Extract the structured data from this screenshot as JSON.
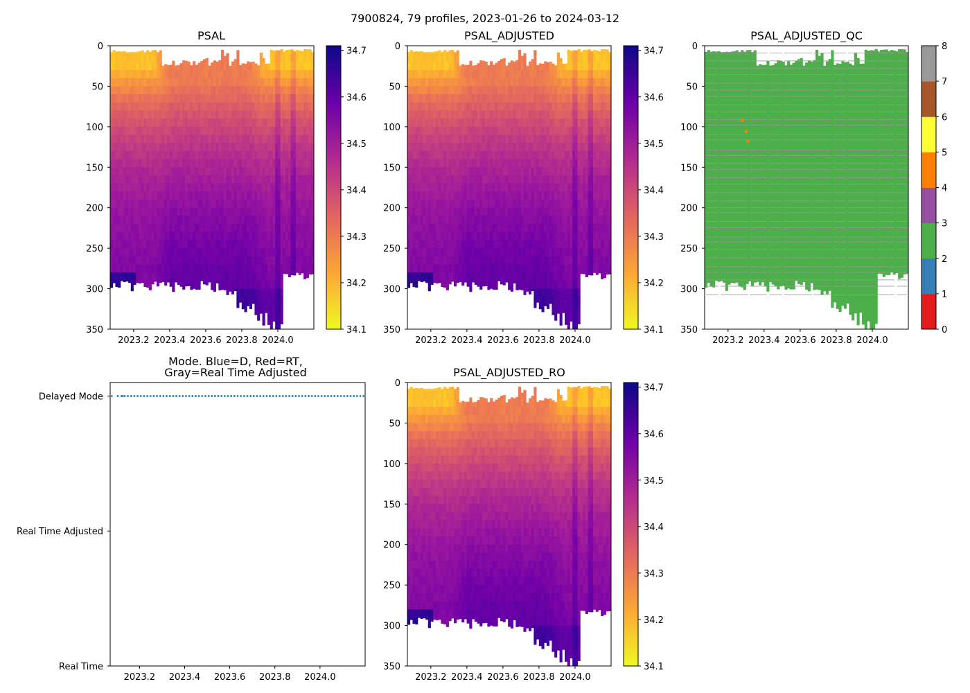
{
  "figure": {
    "suptitle": "7900824, 79 profiles, 2023-01-26 to 2024-03-12"
  },
  "chart_data": [
    {
      "id": "psal",
      "type": "heatmap",
      "title": "PSAL",
      "xticks": [
        "2023.2",
        "2023.4",
        "2023.6",
        "2023.8",
        "2024.0"
      ],
      "xtick_values": [
        2023.2,
        2023.4,
        2023.6,
        2023.8,
        2024.0
      ],
      "xlim": [
        2023.07,
        2024.2
      ],
      "ylim": [
        350,
        0
      ],
      "yticks": [
        "0",
        "50",
        "100",
        "150",
        "200",
        "250",
        "300",
        "350"
      ],
      "colormap": "plasma_r",
      "clim": [
        34.1,
        34.71
      ],
      "colorbar_ticks": [
        "34.1",
        "34.2",
        "34.3",
        "34.4",
        "34.5",
        "34.6",
        "34.7"
      ],
      "colorbar_values": [
        34.1,
        34.2,
        34.3,
        34.4,
        34.5,
        34.6,
        34.7
      ]
    },
    {
      "id": "psal_adjusted",
      "type": "heatmap",
      "title": "PSAL_ADJUSTED",
      "xticks": [
        "2023.2",
        "2023.4",
        "2023.6",
        "2023.8",
        "2024.0"
      ],
      "xtick_values": [
        2023.2,
        2023.4,
        2023.6,
        2023.8,
        2024.0
      ],
      "xlim": [
        2023.07,
        2024.2
      ],
      "ylim": [
        350,
        0
      ],
      "yticks": [
        "0",
        "50",
        "100",
        "150",
        "200",
        "250",
        "300",
        "350"
      ],
      "colormap": "plasma_r",
      "clim": [
        34.1,
        34.71
      ],
      "colorbar_ticks": [
        "34.1",
        "34.2",
        "34.3",
        "34.4",
        "34.5",
        "34.6",
        "34.7"
      ],
      "colorbar_values": [
        34.1,
        34.2,
        34.3,
        34.4,
        34.5,
        34.6,
        34.7
      ]
    },
    {
      "id": "psal_adjusted_qc",
      "type": "heatmap",
      "title": "PSAL_ADJUSTED_QC",
      "xticks": [
        "2023.2",
        "2023.4",
        "2023.6",
        "2023.8",
        "2024.0"
      ],
      "xtick_values": [
        2023.2,
        2023.4,
        2023.6,
        2023.8,
        2024.0
      ],
      "xlim": [
        2023.07,
        2024.2
      ],
      "ylim": [
        350,
        0
      ],
      "yticks": [
        "0",
        "50",
        "100",
        "150",
        "200",
        "250",
        "300",
        "350"
      ],
      "dominant_flag": 2,
      "flag_stripes": 8,
      "flag_points": [
        {
          "x": 2023.28,
          "y": 92,
          "flag": 4
        },
        {
          "x": 2023.3,
          "y": 106,
          "flag": 4
        },
        {
          "x": 2023.31,
          "y": 118,
          "flag": 4
        }
      ],
      "colorbar_ticks": [
        "0",
        "1",
        "2",
        "3",
        "4",
        "5",
        "6",
        "7",
        "8"
      ],
      "colorbar_colors": [
        "#e41a1c",
        "#377eb8",
        "#4daf4a",
        "#984ea3",
        "#ff7f00",
        "#ffff33",
        "#a65628",
        "#f781bf",
        "#999999"
      ]
    },
    {
      "id": "mode",
      "type": "scatter",
      "title_line1": "Mode. Blue=D, Red=RT,",
      "title_line2": "Gray=Real Time Adjusted",
      "xticks": [
        "2023.2",
        "2023.4",
        "2023.6",
        "2023.8",
        "2024.0"
      ],
      "xtick_values": [
        2023.2,
        2023.4,
        2023.6,
        2023.8,
        2024.0
      ],
      "xlim": [
        2023.07,
        2024.2
      ],
      "yticks": [
        "Delayed Mode",
        "Real Time Adjusted",
        "Real Time"
      ],
      "ytick_values": [
        2,
        1,
        0
      ],
      "ylim": [
        0,
        2.1
      ],
      "series": [
        {
          "name": "D",
          "color": "#1f77b4",
          "y": 2,
          "x_start": 2023.07,
          "x_end": 2024.2,
          "count": 79
        }
      ]
    },
    {
      "id": "psal_adjusted_ro",
      "type": "heatmap",
      "title": "PSAL_ADJUSTED_RO",
      "xticks": [
        "2023.2",
        "2023.4",
        "2023.6",
        "2023.8",
        "2024.0"
      ],
      "xtick_values": [
        2023.2,
        2023.4,
        2023.6,
        2023.8,
        2024.0
      ],
      "xlim": [
        2023.07,
        2024.2
      ],
      "ylim": [
        350,
        0
      ],
      "yticks": [
        "0",
        "50",
        "100",
        "150",
        "200",
        "250",
        "300",
        "350"
      ],
      "colormap": "plasma_r",
      "clim": [
        34.1,
        34.71
      ],
      "colorbar_ticks": [
        "34.1",
        "34.2",
        "34.3",
        "34.4",
        "34.5",
        "34.6",
        "34.7"
      ],
      "colorbar_values": [
        34.1,
        34.2,
        34.3,
        34.4,
        34.5,
        34.6,
        34.7
      ]
    }
  ]
}
